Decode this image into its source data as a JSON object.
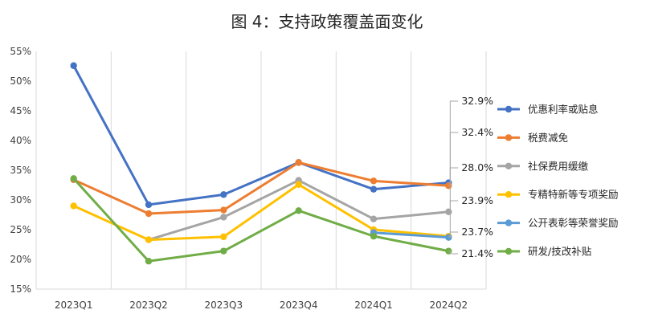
{
  "chart_data": {
    "type": "line",
    "title": "图 4：支持政策覆盖面变化",
    "xlabel": "",
    "ylabel": "",
    "categories": [
      "2023Q1",
      "2023Q2",
      "2023Q3",
      "2023Q4",
      "2024Q1",
      "2024Q2"
    ],
    "ylim": [
      15,
      55
    ],
    "yticks": [
      "15%",
      "20%",
      "25%",
      "30%",
      "35%",
      "40%",
      "45%",
      "50%",
      "55%"
    ],
    "grid": "vertical",
    "legend_position": "right",
    "series": [
      {
        "name": "优惠利率或贴息",
        "color": "#4472C4",
        "values": [
          52.6,
          29.2,
          30.9,
          36.3,
          31.8,
          32.9
        ],
        "end_label": "32.9%"
      },
      {
        "name": "税费减免",
        "color": "#ED7D31",
        "values": [
          33.4,
          27.7,
          28.3,
          36.3,
          33.2,
          32.4
        ],
        "end_label": "32.4%"
      },
      {
        "name": "社保费用缓缴",
        "color": "#A5A5A5",
        "values": [
          null,
          23.3,
          27.1,
          33.3,
          26.8,
          28.0
        ],
        "end_label": "28.0%"
      },
      {
        "name": "专精特新等专项奖励",
        "color": "#FFC000",
        "values": [
          29.0,
          23.3,
          23.8,
          32.6,
          25.0,
          23.9
        ],
        "end_label": "23.9%"
      },
      {
        "name": "公开表彰等荣誉奖励",
        "color": "#5B9BD5",
        "values": [
          null,
          null,
          null,
          null,
          24.5,
          23.7
        ],
        "end_label": "23.7%"
      },
      {
        "name": "研发/技改补贴",
        "color": "#70AD47",
        "values": [
          33.6,
          19.7,
          21.4,
          28.2,
          23.9,
          21.4
        ],
        "end_label": "21.4%"
      }
    ]
  }
}
